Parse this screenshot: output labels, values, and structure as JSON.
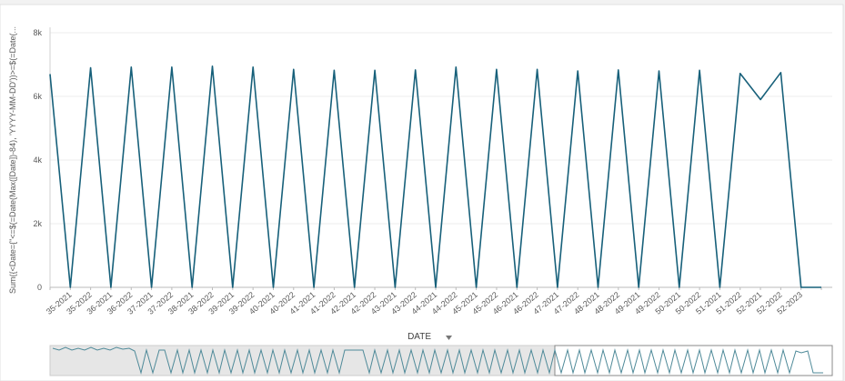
{
  "chart_data": {
    "type": "line",
    "y_label": "Sum({<Date={\"<=$(=Date(Max([Date])-84), 'YYYY-MM-DD'))>=$(=Date(...",
    "x_label": "DATE",
    "categories": [
      null,
      "35-2021",
      "35-2022",
      "36-2021",
      "36-2022",
      "37-2021",
      "37-2022",
      "38-2021",
      "38-2022",
      "39-2021",
      "39-2022",
      "40-2021",
      "40-2022",
      "41-2021",
      "41-2022",
      "42-2021",
      "42-2022",
      "43-2021",
      "43-2022",
      "44-2021",
      "44-2022",
      "45-2021",
      "45-2022",
      "46-2021",
      "46-2022",
      "47-2021",
      "47-2022",
      "48-2021",
      "48-2022",
      "49-2021",
      "49-2022",
      "50-2021",
      "50-2022",
      "51-2021",
      "51-2022",
      "52-2021",
      "52-2022",
      "52-2023",
      null
    ],
    "series": [
      {
        "name": "Sum",
        "color": "#17607a",
        "values": [
          6700,
          0,
          6900,
          0,
          6920,
          0,
          6920,
          0,
          6950,
          0,
          6920,
          0,
          6850,
          0,
          6820,
          0,
          6820,
          0,
          6830,
          0,
          6920,
          0,
          6850,
          0,
          6850,
          0,
          6800,
          0,
          6830,
          0,
          6800,
          0,
          6820,
          0,
          6720,
          5900,
          6750,
          0,
          0
        ]
      }
    ],
    "ylim": [
      0,
      8000
    ],
    "yticks": [
      0,
      {
        "value": 2000,
        "label": "2k"
      },
      {
        "value": 4000,
        "label": "4k"
      },
      {
        "value": 6000,
        "label": "6k"
      },
      {
        "value": 8000,
        "label": "8k"
      }
    ],
    "grid": true
  }
}
